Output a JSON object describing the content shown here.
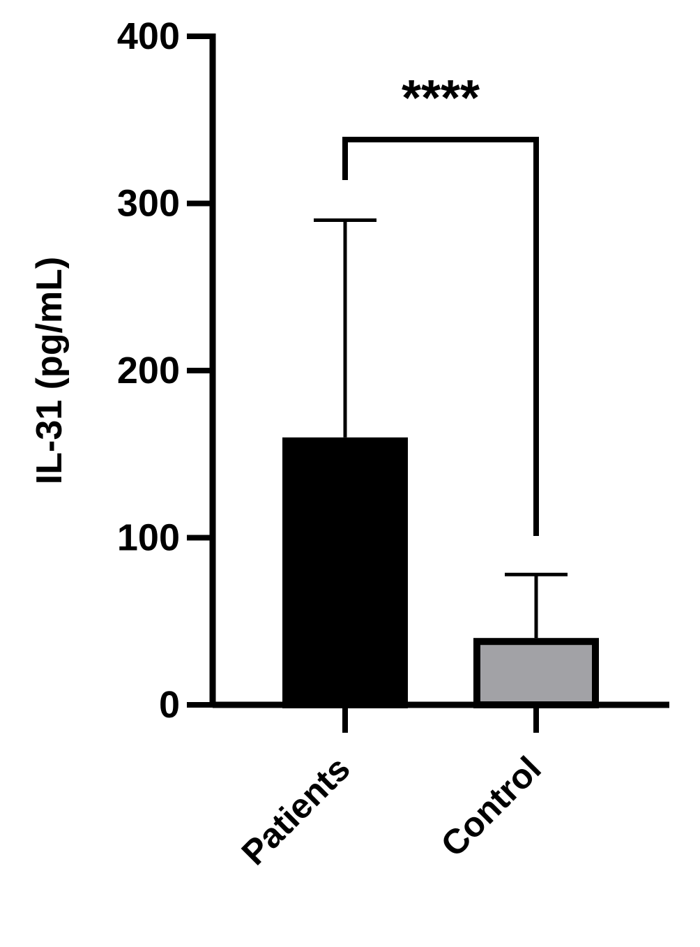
{
  "chart_data": {
    "type": "bar",
    "ylabel": "IL-31 (pg/mL)",
    "categories": [
      "Patients",
      "Control"
    ],
    "values": [
      160,
      40
    ],
    "errors": [
      130,
      38
    ],
    "colors": [
      "#000000",
      "#a2a2a6"
    ],
    "annotation": "****",
    "ylim": [
      0,
      400
    ],
    "yticks": [
      0,
      100,
      200,
      300,
      400
    ]
  }
}
